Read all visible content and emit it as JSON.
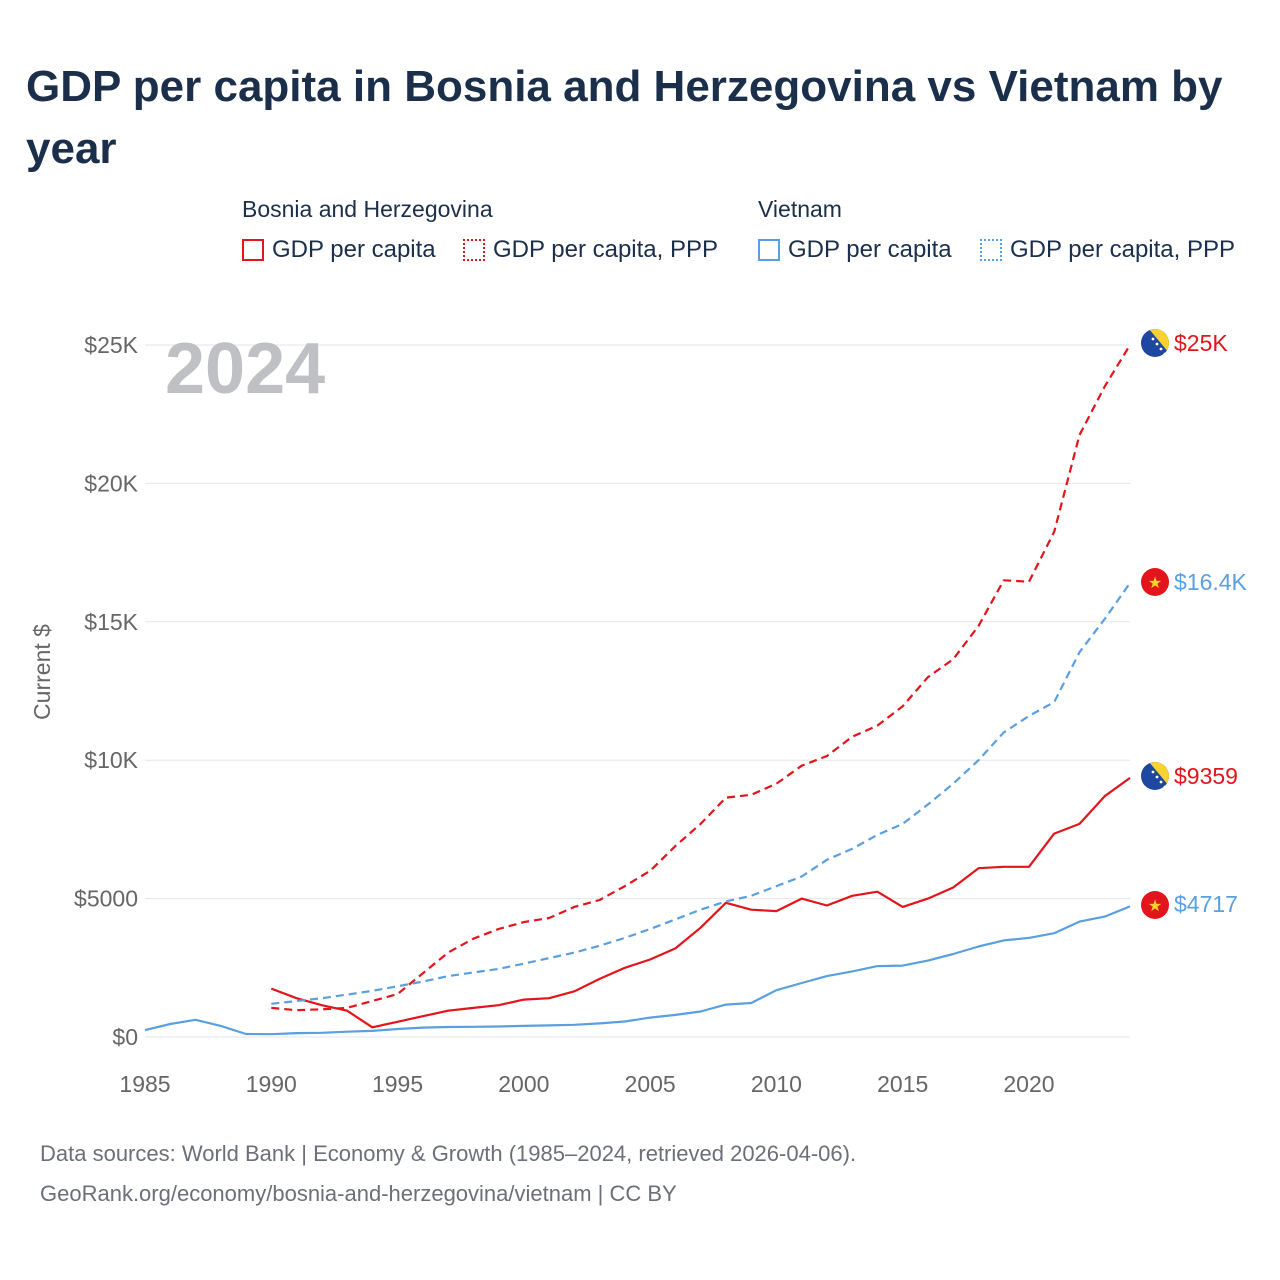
{
  "title": "GDP per capita in Bosnia and Herzegovina vs Vietnam by year",
  "colors": {
    "bosnia": "#e3141b",
    "vietnam": "#5a9fe0",
    "grid": "#e6e6e6",
    "axis_text": "#666666",
    "year_watermark": "#bfc0c4",
    "title": "#1b2f4a"
  },
  "legend": {
    "groups": [
      {
        "label": "Bosnia and Herzegovina",
        "items": [
          {
            "label": "GDP per capita",
            "style": "solid"
          },
          {
            "label": "GDP per capita, PPP",
            "style": "dotted"
          }
        ]
      },
      {
        "label": "Vietnam",
        "items": [
          {
            "label": "GDP per capita",
            "style": "solid"
          },
          {
            "label": "GDP per capita, PPP",
            "style": "dotted"
          }
        ]
      }
    ]
  },
  "year_watermark": "2024",
  "end_labels": {
    "bosnia_ppp": "$25K",
    "vietnam_ppp": "$16.4K",
    "bosnia_gdp": "$9359",
    "vietnam_gdp": "$4717"
  },
  "chart_data": {
    "type": "line",
    "title": "GDP per capita in Bosnia and Herzegovina vs Vietnam by year",
    "xlabel": "",
    "ylabel": "Current $",
    "xlim": [
      1985,
      2024
    ],
    "ylim": [
      0,
      25000
    ],
    "x_ticks": [
      1985,
      1990,
      1995,
      2000,
      2005,
      2010,
      2015,
      2020
    ],
    "x_tick_labels": [
      "1985",
      "1990",
      "1995",
      "2000",
      "2005",
      "2010",
      "2015",
      "2020"
    ],
    "y_ticks": [
      0,
      5000,
      10000,
      15000,
      20000,
      25000
    ],
    "y_tick_labels": [
      "$0",
      "$5000",
      "$10K",
      "$15K",
      "$20K",
      "$25K"
    ],
    "grid": true,
    "series": [
      {
        "name": "Bosnia and Herzegovina – GDP per capita",
        "color": "#e3141b",
        "dash": "solid",
        "x": [
          1990,
          1991,
          1992,
          1993,
          1994,
          1995,
          1996,
          1997,
          1998,
          1999,
          2000,
          2001,
          2002,
          2003,
          2004,
          2005,
          2006,
          2007,
          2008,
          2009,
          2010,
          2011,
          2012,
          2013,
          2014,
          2015,
          2016,
          2017,
          2018,
          2019,
          2020,
          2021,
          2022,
          2023,
          2024
        ],
        "values": [
          1750,
          1400,
          1150,
          950,
          350,
          550,
          750,
          950,
          1050,
          1150,
          1350,
          1400,
          1650,
          2100,
          2500,
          2800,
          3200,
          3950,
          4850,
          4600,
          4550,
          5000,
          4750,
          5100,
          5250,
          4700,
          5000,
          5400,
          6100,
          6150,
          6150,
          7350,
          7700,
          8700,
          9359
        ]
      },
      {
        "name": "Bosnia and Herzegovina – GDP per capita, PPP",
        "color": "#e3141b",
        "dash": "dashed",
        "x": [
          1990,
          1991,
          1992,
          1993,
          1994,
          1995,
          1996,
          1997,
          1998,
          1999,
          2000,
          2001,
          2002,
          2003,
          2004,
          2005,
          2006,
          2007,
          2008,
          2009,
          2010,
          2011,
          2012,
          2013,
          2014,
          2015,
          2016,
          2017,
          2018,
          2019,
          2020,
          2021,
          2022,
          2023,
          2024
        ],
        "values": [
          1050,
          970,
          1000,
          1050,
          1300,
          1550,
          2300,
          3050,
          3550,
          3900,
          4150,
          4300,
          4700,
          4950,
          5450,
          6000,
          6900,
          7700,
          8650,
          8750,
          9150,
          9800,
          10150,
          10850,
          11250,
          11950,
          13000,
          13650,
          14850,
          16500,
          16450,
          18250,
          21750,
          23500,
          25000
        ]
      },
      {
        "name": "Vietnam – GDP per capita",
        "color": "#5a9fe0",
        "dash": "solid",
        "x": [
          1985,
          1986,
          1987,
          1988,
          1989,
          1990,
          1991,
          1992,
          1993,
          1994,
          1995,
          1996,
          1997,
          1998,
          1999,
          2000,
          2001,
          2002,
          2003,
          2004,
          2005,
          2006,
          2007,
          2008,
          2009,
          2010,
          2011,
          2012,
          2013,
          2014,
          2015,
          2016,
          2017,
          2018,
          2019,
          2020,
          2021,
          2022,
          2023,
          2024
        ],
        "values": [
          250,
          470,
          620,
          400,
          110,
          100,
          140,
          150,
          190,
          220,
          290,
          340,
          360,
          370,
          380,
          400,
          420,
          440,
          490,
          560,
          700,
          800,
          920,
          1170,
          1230,
          1690,
          1950,
          2200,
          2370,
          2560,
          2580,
          2760,
          3000,
          3270,
          3490,
          3580,
          3750,
          4170,
          4350,
          4717
        ]
      },
      {
        "name": "Vietnam – GDP per capita, PPP",
        "color": "#5a9fe0",
        "dash": "dashed",
        "x": [
          1990,
          1991,
          1992,
          1993,
          1994,
          1995,
          1996,
          1997,
          1998,
          1999,
          2000,
          2001,
          2002,
          2003,
          2004,
          2005,
          2006,
          2007,
          2008,
          2009,
          2010,
          2011,
          2012,
          2013,
          2014,
          2015,
          2016,
          2017,
          2018,
          2019,
          2020,
          2021,
          2022,
          2023,
          2024
        ],
        "values": [
          1200,
          1300,
          1400,
          1530,
          1670,
          1830,
          2000,
          2200,
          2330,
          2460,
          2650,
          2850,
          3050,
          3300,
          3580,
          3900,
          4250,
          4600,
          4900,
          5100,
          5450,
          5800,
          6400,
          6800,
          7300,
          7700,
          8400,
          9150,
          10000,
          11000,
          11600,
          12100,
          13900,
          15100,
          16400
        ]
      }
    ]
  },
  "source": {
    "line1": "Data sources: World Bank | Economy & Growth (1985–2024, retrieved 2026-04-06).",
    "line2": "GeoRank.org/economy/bosnia-and-herzegovina/vietnam | CC BY"
  }
}
